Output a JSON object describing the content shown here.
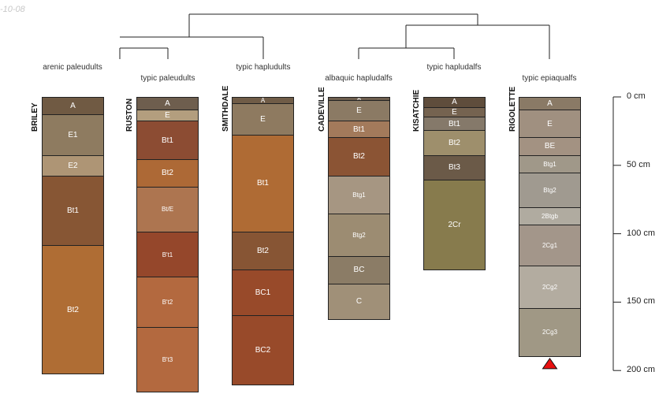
{
  "date_label": "-10-08",
  "scale": {
    "unit": "cm",
    "ticks": [
      0,
      50,
      100,
      150,
      200
    ]
  },
  "taxa": [
    "arenic paleudults",
    "typic paleudults",
    "typic hapludults",
    "albaquic hapludalfs",
    "typic hapludalfs",
    "typic epiaqualfs"
  ],
  "profiles": [
    {
      "name": "BRILEY",
      "taxon": 0,
      "horizons": [
        {
          "name": "A",
          "top": 0,
          "bottom": 13,
          "color": "#705a43"
        },
        {
          "name": "E1",
          "top": 13,
          "bottom": 43,
          "color": "#8e7b60"
        },
        {
          "name": "E2",
          "top": 43,
          "bottom": 58,
          "color": "#ae9575"
        },
        {
          "name": "Bt1",
          "top": 58,
          "bottom": 109,
          "color": "#875634"
        },
        {
          "name": "Bt2",
          "top": 109,
          "bottom": 203,
          "color": "#af6d34"
        }
      ]
    },
    {
      "name": "RUSTON",
      "taxon": 1,
      "horizons": [
        {
          "name": "A",
          "top": 0,
          "bottom": 10,
          "color": "#6e5e4e"
        },
        {
          "name": "E",
          "top": 10,
          "bottom": 18,
          "color": "#b39e7e"
        },
        {
          "name": "Bt1",
          "top": 18,
          "bottom": 46,
          "color": "#8c4c33"
        },
        {
          "name": "Bt2",
          "top": 46,
          "bottom": 66,
          "color": "#ad6936"
        },
        {
          "name": "Bt/E",
          "top": 66,
          "bottom": 99,
          "color": "#ad7550"
        },
        {
          "name": "B't1",
          "top": 99,
          "bottom": 132,
          "color": "#95472b"
        },
        {
          "name": "B't2",
          "top": 132,
          "bottom": 169,
          "color": "#b3693f"
        },
        {
          "name": "B't3",
          "top": 169,
          "bottom": 216,
          "color": "#b3693f"
        }
      ]
    },
    {
      "name": "SMITHDALE",
      "taxon": 2,
      "horizons": [
        {
          "name": "A",
          "top": 0,
          "bottom": 5,
          "color": "#705c47"
        },
        {
          "name": "E",
          "top": 5,
          "bottom": 28,
          "color": "#8e7a60"
        },
        {
          "name": "Bt1",
          "top": 28,
          "bottom": 99,
          "color": "#af6b34"
        },
        {
          "name": "Bt2",
          "top": 99,
          "bottom": 127,
          "color": "#875534"
        },
        {
          "name": "BC1",
          "top": 127,
          "bottom": 160,
          "color": "#984a2a"
        },
        {
          "name": "BC2",
          "top": 160,
          "bottom": 211,
          "color": "#984a2a"
        }
      ]
    },
    {
      "name": "CADEVILLE",
      "taxon": 3,
      "horizons": [
        {
          "name": "A",
          "top": 0,
          "bottom": 3,
          "color": "#6e5e4e"
        },
        {
          "name": "E",
          "top": 3,
          "bottom": 18,
          "color": "#8b7a64"
        },
        {
          "name": "Bt1",
          "top": 18,
          "bottom": 30,
          "color": "#a37a5b"
        },
        {
          "name": "Bt2",
          "top": 30,
          "bottom": 58,
          "color": "#8b5434"
        },
        {
          "name": "Btg1",
          "top": 58,
          "bottom": 86,
          "color": "#a69682"
        },
        {
          "name": "Btg2",
          "top": 86,
          "bottom": 117,
          "color": "#9c8c72"
        },
        {
          "name": "BC",
          "top": 117,
          "bottom": 137,
          "color": "#8b7c66"
        },
        {
          "name": "C",
          "top": 137,
          "bottom": 163,
          "color": "#a09078"
        }
      ]
    },
    {
      "name": "KISATCHIE",
      "taxon": 4,
      "horizons": [
        {
          "name": "A",
          "top": 0,
          "bottom": 8,
          "color": "#5f4d3c"
        },
        {
          "name": "E",
          "top": 8,
          "bottom": 15,
          "color": "#756350"
        },
        {
          "name": "Bt1",
          "top": 15,
          "bottom": 25,
          "color": "#85796a"
        },
        {
          "name": "Bt2",
          "top": 25,
          "bottom": 43,
          "color": "#9e8f6c"
        },
        {
          "name": "Bt3",
          "top": 43,
          "bottom": 61,
          "color": "#6b5a48"
        },
        {
          "name": "2Cr",
          "top": 61,
          "bottom": 127,
          "color": "#877b4d"
        }
      ]
    },
    {
      "name": "RIGOLETTE",
      "taxon": 5,
      "horizons": [
        {
          "name": "A",
          "top": 0,
          "bottom": 10,
          "color": "#8a7a66"
        },
        {
          "name": "E",
          "top": 10,
          "bottom": 30,
          "color": "#a09080"
        },
        {
          "name": "BE",
          "top": 30,
          "bottom": 43,
          "color": "#a39282"
        },
        {
          "name": "Btg1",
          "top": 43,
          "bottom": 56,
          "color": "#a09889"
        },
        {
          "name": "Btg2",
          "top": 56,
          "bottom": 81,
          "color": "#a09a90"
        },
        {
          "name": "2Btgb",
          "top": 81,
          "bottom": 94,
          "color": "#b0aba0"
        },
        {
          "name": "2Cg1",
          "top": 94,
          "bottom": 124,
          "color": "#a3968a"
        },
        {
          "name": "2Cg2",
          "top": 124,
          "bottom": 155,
          "color": "#b3aca0"
        },
        {
          "name": "2Cg3",
          "top": 155,
          "bottom": 190,
          "color": "#a09885"
        }
      ],
      "marker": "red-triangle-marker"
    }
  ],
  "colors": {
    "line": "#222222",
    "marker": "#e81010",
    "label_dark": "#222222",
    "label_light": "#ffffff"
  }
}
